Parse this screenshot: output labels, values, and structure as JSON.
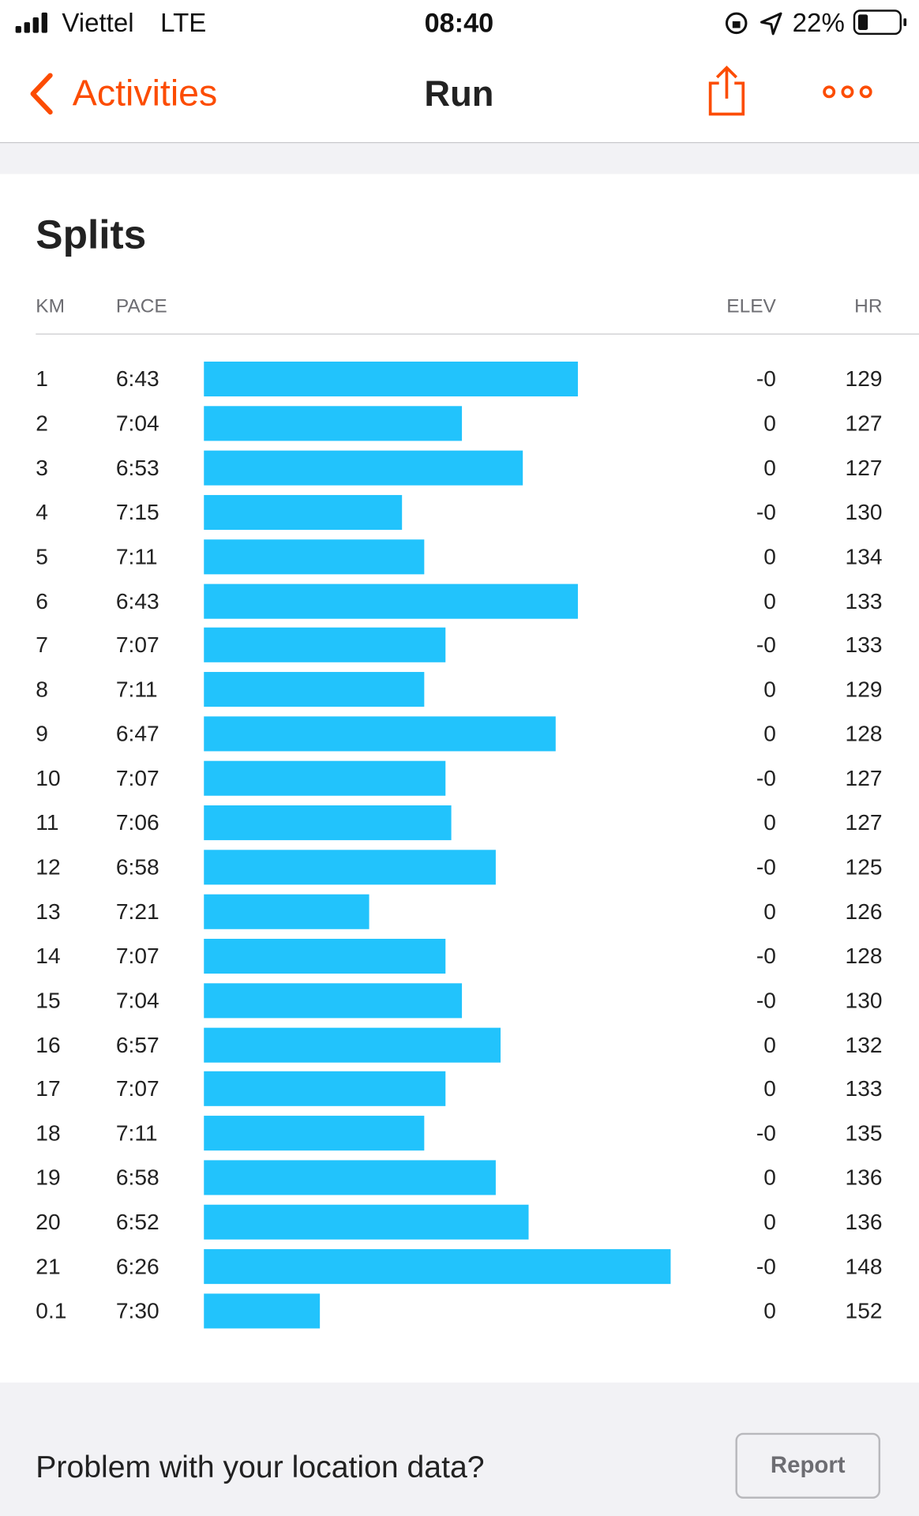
{
  "status_bar": {
    "carrier": "Viettel",
    "network": "LTE",
    "time": "08:40",
    "battery": "22%"
  },
  "nav": {
    "back": "Activities",
    "title": "Run"
  },
  "splits": {
    "title": "Splits",
    "columns": {
      "km": "KM",
      "pace": "PACE",
      "elev": "ELEV",
      "hr": "HR"
    },
    "rows": [
      {
        "km": 1,
        "pace": "6:43",
        "elev": "-0",
        "hr": 129
      },
      {
        "km": 2,
        "pace": "7:04",
        "elev": "0",
        "hr": 127
      },
      {
        "km": 3,
        "pace": "6:53",
        "elev": "0",
        "hr": 127
      },
      {
        "km": 4,
        "pace": "7:15",
        "elev": "-0",
        "hr": 130
      },
      {
        "km": 5,
        "pace": "7:11",
        "elev": "0",
        "hr": 134
      },
      {
        "km": 6,
        "pace": "6:43",
        "elev": "0",
        "hr": 133
      },
      {
        "km": 7,
        "pace": "7:07",
        "elev": "-0",
        "hr": 133
      },
      {
        "km": 8,
        "pace": "7:11",
        "elev": "0",
        "hr": 129
      },
      {
        "km": 9,
        "pace": "6:47",
        "elev": "0",
        "hr": 128
      },
      {
        "km": 10,
        "pace": "7:07",
        "elev": "-0",
        "hr": 127
      },
      {
        "km": 11,
        "pace": "7:06",
        "elev": "0",
        "hr": 127
      },
      {
        "km": 12,
        "pace": "6:58",
        "elev": "-0",
        "hr": 125
      },
      {
        "km": 13,
        "pace": "7:21",
        "elev": "0",
        "hr": 126
      },
      {
        "km": 14,
        "pace": "7:07",
        "elev": "-0",
        "hr": 128
      },
      {
        "km": 15,
        "pace": "7:04",
        "elev": "-0",
        "hr": 130
      },
      {
        "km": 16,
        "pace": "6:57",
        "elev": "0",
        "hr": 132
      },
      {
        "km": 17,
        "pace": "7:07",
        "elev": "0",
        "hr": 133
      },
      {
        "km": 18,
        "pace": "7:11",
        "elev": "-0",
        "hr": 135
      },
      {
        "km": 19,
        "pace": "6:58",
        "elev": "0",
        "hr": 136
      },
      {
        "km": 20,
        "pace": "6:52",
        "elev": "0",
        "hr": 136
      },
      {
        "km": 21,
        "pace": "6:26",
        "elev": "-0",
        "hr": 148
      },
      {
        "km": 0.1,
        "pace": "7:30",
        "elev": "0",
        "hr": 152
      }
    ]
  },
  "footer": {
    "question": "Problem with your location data?",
    "button": "Report"
  }
}
